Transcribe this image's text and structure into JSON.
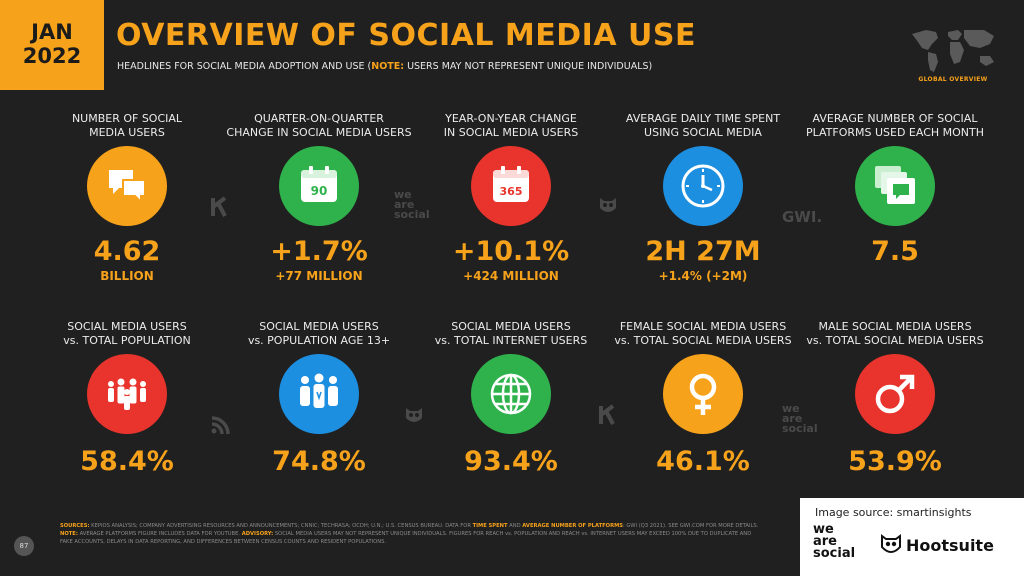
{
  "header": {
    "date_month": "JAN",
    "date_year": "2022",
    "title": "OVERVIEW OF SOCIAL MEDIA USE",
    "subtitle_before": "HEADLINES FOR SOCIAL MEDIA ADOPTION AND USE (",
    "subtitle_note": "NOTE:",
    "subtitle_after": " USERS MAY NOT REPRESENT UNIQUE INDIVIDUALS)",
    "map_label": "GLOBAL OVERVIEW"
  },
  "colors": {
    "accent": "#f7a21b",
    "background": "#202020",
    "orange": "#f7a21b",
    "green": "#2fb24c",
    "red": "#e8342c",
    "blue": "#1d8fe0"
  },
  "row1": [
    {
      "label_1": "NUMBER OF SOCIAL",
      "label_2": "MEDIA USERS",
      "icon": "speech-bubbles-icon",
      "color": "#f7a21b",
      "value": "4.62",
      "sub": "BILLION"
    },
    {
      "label_1": "QUARTER-ON-QUARTER",
      "label_2": "CHANGE IN SOCIAL MEDIA USERS",
      "icon": "calendar-90-icon",
      "icon_text": "90",
      "color": "#2fb24c",
      "value": "+1.7%",
      "sub": "+77 MILLION"
    },
    {
      "label_1": "YEAR-ON-YEAR CHANGE",
      "label_2": "IN SOCIAL MEDIA USERS",
      "icon": "calendar-365-icon",
      "icon_text": "365",
      "color": "#e8342c",
      "value": "+10.1%",
      "sub": "+424 MILLION"
    },
    {
      "label_1": "AVERAGE DAILY TIME SPENT",
      "label_2": "USING SOCIAL MEDIA",
      "icon": "clock-icon",
      "color": "#1d8fe0",
      "value": "2H 27M",
      "sub": "+1.4% (+2M)"
    },
    {
      "label_1": "AVERAGE NUMBER OF SOCIAL",
      "label_2": "PLATFORMS USED EACH MONTH",
      "icon": "stacked-windows-icon",
      "color": "#2fb24c",
      "value": "7.5",
      "sub": ""
    }
  ],
  "row2": [
    {
      "label_1": "SOCIAL MEDIA USERS",
      "label_2": "vs. TOTAL POPULATION",
      "icon": "population-icon",
      "color": "#e8342c",
      "value": "58.4%"
    },
    {
      "label_1": "SOCIAL MEDIA USERS",
      "label_2": "vs. POPULATION AGE 13+",
      "icon": "adults-icon",
      "color": "#1d8fe0",
      "value": "74.8%"
    },
    {
      "label_1": "SOCIAL MEDIA USERS",
      "label_2": "vs. TOTAL INTERNET USERS",
      "icon": "globe-icon",
      "color": "#2fb24c",
      "value": "93.4%"
    },
    {
      "label_1": "FEMALE SOCIAL MEDIA USERS",
      "label_2": "vs. TOTAL SOCIAL MEDIA USERS",
      "icon": "female-symbol-icon",
      "color": "#f7a21b",
      "value": "46.1%"
    },
    {
      "label_1": "MALE SOCIAL MEDIA USERS",
      "label_2": "vs. TOTAL SOCIAL MEDIA USERS",
      "icon": "male-symbol-icon",
      "color": "#e8342c",
      "value": "53.9%"
    }
  ],
  "watermarks": {
    "we": "we",
    "are": "are",
    "social": "social",
    "gwi": "GWI."
  },
  "footer": {
    "page_number": "87",
    "sources_label": "SOURCES:",
    "line1": " KEPIOS ANALYSIS; COMPANY ADVERTISING RESOURCES AND ANNOUNCEMENTS; CNNIC; TECHRASA; OCDH; U.N.; U.S. CENSUS BUREAU. DATA FOR ",
    "time_spent": "TIME SPENT",
    "and": " AND ",
    "avg_platforms": "AVERAGE NUMBER OF PLATFORMS",
    "line2": ": GWI (Q3 2021). SEE GWI.COM FOR MORE DETAILS. ",
    "note_label": "NOTE:",
    "line3": " AVERAGE PLATFORMS FIGURE INCLUDES DATA FOR YOUTUBE. ",
    "advisory_label": "ADVISORY:",
    "line4": " SOCIAL MEDIA USERS MAY NOT REPRESENT UNIQUE INDIVIDUALS. FIGURES FOR REACH vs. POPULATION AND REACH vs. INTERNET USERS MAY EXCEED 100% DUE TO DUPLICATE AND FAKE ACCOUNTS, DELAYS IN DATA REPORTING, AND DIFFERENCES BETWEEN CENSUS COUNTS AND RESIDENT POPULATIONS."
  },
  "credit": {
    "image_source": "Image source: smartinsights",
    "was_we": "we",
    "was_are": "are",
    "was_social": "social",
    "hootsuite": "Hootsuite"
  }
}
